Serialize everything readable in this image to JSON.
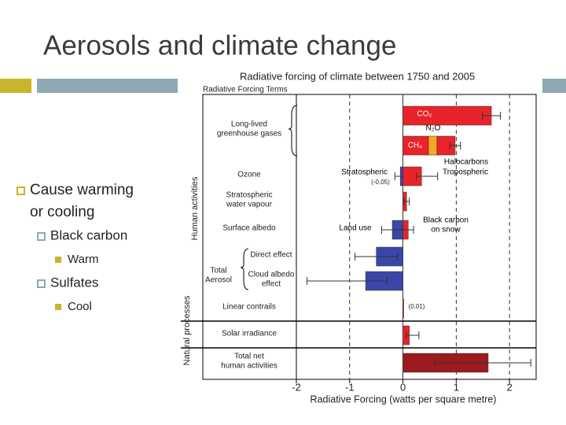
{
  "slide": {
    "title": "Aerosols and climate change",
    "bullets": [
      {
        "text": [
          "Cause warming",
          "or cooling"
        ],
        "level": 1
      },
      {
        "text": [
          "Black carbon"
        ],
        "level": 2
      },
      {
        "text": [
          "Warm"
        ],
        "level": 3
      },
      {
        "text": [
          "Sulfates"
        ],
        "level": 2
      },
      {
        "text": [
          "Cool"
        ],
        "level": 3
      }
    ]
  },
  "chart_data": {
    "type": "hbar",
    "title": "Radiative forcing of climate between 1750 and 2005",
    "column_header": "Radiative Forcing Terms",
    "xlabel": "Radiative Forcing  (watts per square metre)",
    "xlim": [
      -2,
      2.5
    ],
    "xticks": [
      -2,
      -1,
      0,
      1,
      2
    ],
    "dashed_ticks": [
      -1,
      1,
      2
    ],
    "side_labels": [
      "Human activities",
      "Natural processes"
    ],
    "aerosol_group": [
      "Total",
      "Aerosol"
    ],
    "rows": [
      {
        "label": [
          "Long-lived",
          "greenhouse gases"
        ],
        "bars": [
          {
            "name": "CO₂",
            "value": 1.66,
            "color": "#e8242a",
            "range": [
              1.49,
              1.83
            ]
          }
        ]
      },
      {
        "stack": true,
        "range": [
          0.88,
          1.08
        ],
        "bars": [
          {
            "name": "CH₄",
            "value": 0.48,
            "color": "#e8242a"
          },
          {
            "name": "N₂O",
            "value": 0.16,
            "color": "#f5a623"
          },
          {
            "name": "Halocarbons",
            "value": 0.34,
            "color": "#e8242a"
          }
        ]
      },
      {
        "label": [
          "Ozone"
        ],
        "bars": [
          {
            "name": "Stratospheric",
            "note": "(-0.05)",
            "value": -0.05,
            "color": "#3a47a8",
            "range": [
              -0.15,
              0.05
            ]
          },
          {
            "name": "Tropospheric",
            "value": 0.35,
            "color": "#e8242a",
            "range": [
              0.25,
              0.65
            ]
          }
        ]
      },
      {
        "label": [
          "Stratospheric",
          "water vapour"
        ],
        "bars": [
          {
            "value": 0.07,
            "color": "#e8242a",
            "range": [
              0.02,
              0.12
            ]
          }
        ]
      },
      {
        "label": [
          "Surface albedo"
        ],
        "bars": [
          {
            "name": "Land use",
            "value": -0.2,
            "color": "#3a47a8",
            "range": [
              -0.4,
              0
            ]
          },
          {
            "name": "Black carbon on snow",
            "value": 0.1,
            "color": "#e8242a",
            "range": [
              0,
              0.2
            ]
          }
        ]
      },
      {
        "label": [
          "Direct effect"
        ],
        "bars": [
          {
            "value": -0.5,
            "color": "#3a47a8",
            "range": [
              -0.9,
              -0.1
            ]
          }
        ]
      },
      {
        "label": [
          "Cloud albedo",
          "effect"
        ],
        "bars": [
          {
            "value": -0.7,
            "color": "#3a47a8",
            "range": [
              -1.8,
              -0.3
            ]
          }
        ]
      },
      {
        "label": [
          "Linear contrails"
        ],
        "bars": [
          {
            "note": "(0.01)",
            "value": 0.01,
            "color": "#e8242a"
          }
        ]
      },
      {
        "label": [
          "Solar irradiance"
        ],
        "bars": [
          {
            "value": 0.12,
            "color": "#e8242a",
            "range": [
              0.06,
              0.3
            ]
          }
        ]
      },
      {
        "label": [
          "Total net",
          "human activities"
        ],
        "bars": [
          {
            "value": 1.6,
            "color": "#9b1b1e",
            "range": [
              0.6,
              2.4
            ]
          }
        ]
      }
    ]
  }
}
